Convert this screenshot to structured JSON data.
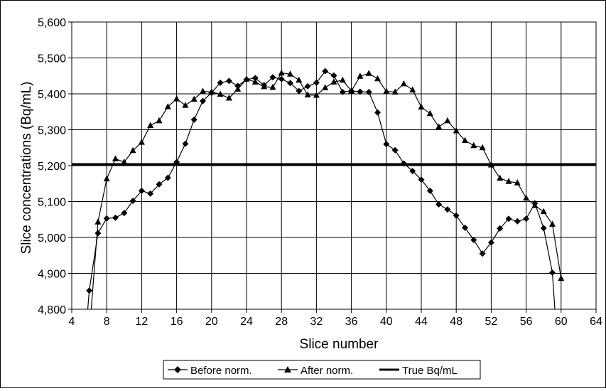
{
  "chart_data": {
    "type": "line",
    "xlabel": "Slice number",
    "ylabel": "Slice concentrations (Bq/mL)",
    "xlim": [
      4,
      64
    ],
    "ylim": [
      4800,
      5600
    ],
    "x_ticks": [
      "4",
      "8",
      "12",
      "16",
      "20",
      "24",
      "28",
      "32",
      "36",
      "40",
      "44",
      "48",
      "52",
      "56",
      "60",
      "64"
    ],
    "x_tick_values": [
      4,
      8,
      12,
      16,
      20,
      24,
      28,
      32,
      36,
      40,
      44,
      48,
      52,
      56,
      60,
      64
    ],
    "y_ticks": [
      "4,800",
      "4,900",
      "5,000",
      "5,100",
      "5,200",
      "5,300",
      "5,400",
      "5,500",
      "5,600"
    ],
    "y_tick_values": [
      4800,
      4900,
      5000,
      5100,
      5200,
      5300,
      5400,
      5500,
      5600
    ],
    "grid": true,
    "legend_position": "bottom",
    "series": [
      {
        "name": "Before norm.",
        "marker": "diamond",
        "color": "#000000",
        "points": [
          [
            5.7,
            4760
          ],
          [
            6,
            4852
          ],
          [
            7,
            5012
          ],
          [
            8,
            5053
          ],
          [
            9,
            5055
          ],
          [
            10,
            5068
          ],
          [
            11,
            5102
          ],
          [
            12,
            5130
          ],
          [
            13,
            5122
          ],
          [
            14,
            5148
          ],
          [
            15,
            5166
          ],
          [
            16,
            5210
          ],
          [
            17,
            5261
          ],
          [
            18,
            5328
          ],
          [
            19,
            5380
          ],
          [
            20,
            5403
          ],
          [
            21,
            5431
          ],
          [
            22,
            5436
          ],
          [
            23,
            5422
          ],
          [
            24,
            5440
          ],
          [
            25,
            5444
          ],
          [
            26,
            5424
          ],
          [
            27,
            5446
          ],
          [
            28,
            5441
          ],
          [
            29,
            5430
          ],
          [
            30,
            5408
          ],
          [
            31,
            5421
          ],
          [
            32,
            5431
          ],
          [
            33,
            5463
          ],
          [
            34,
            5451
          ],
          [
            35,
            5405
          ],
          [
            36,
            5408
          ],
          [
            37,
            5406
          ],
          [
            38,
            5405
          ],
          [
            39,
            5348
          ],
          [
            40,
            5260
          ],
          [
            41,
            5243
          ],
          [
            42,
            5206
          ],
          [
            43,
            5185
          ],
          [
            44,
            5161
          ],
          [
            45,
            5130
          ],
          [
            46,
            5092
          ],
          [
            47,
            5078
          ],
          [
            48,
            5061
          ],
          [
            49,
            5027
          ],
          [
            50,
            4993
          ],
          [
            51,
            4955
          ],
          [
            52,
            4986
          ],
          [
            53,
            5025
          ],
          [
            54,
            5052
          ],
          [
            55,
            5045
          ],
          [
            56,
            5052
          ],
          [
            57,
            5095
          ],
          [
            58,
            5026
          ],
          [
            59,
            4902
          ],
          [
            59.4,
            4760
          ]
        ]
      },
      {
        "name": "After norm.",
        "marker": "triangle",
        "color": "#000000",
        "points": [
          [
            6.1,
            4760
          ],
          [
            7,
            5043
          ],
          [
            8,
            5163
          ],
          [
            9,
            5219
          ],
          [
            10,
            5210
          ],
          [
            11,
            5242
          ],
          [
            12,
            5265
          ],
          [
            13,
            5312
          ],
          [
            14,
            5325
          ],
          [
            15,
            5364
          ],
          [
            16,
            5386
          ],
          [
            17,
            5368
          ],
          [
            18,
            5385
          ],
          [
            19,
            5407
          ],
          [
            20,
            5405
          ],
          [
            21,
            5399
          ],
          [
            22,
            5388
          ],
          [
            23,
            5413
          ],
          [
            24,
            5441
          ],
          [
            25,
            5433
          ],
          [
            26,
            5420
          ],
          [
            27,
            5418
          ],
          [
            28,
            5458
          ],
          [
            29,
            5455
          ],
          [
            30,
            5438
          ],
          [
            31,
            5397
          ],
          [
            32,
            5396
          ],
          [
            33,
            5417
          ],
          [
            34,
            5433
          ],
          [
            35,
            5438
          ],
          [
            36,
            5408
          ],
          [
            37,
            5449
          ],
          [
            38,
            5457
          ],
          [
            39,
            5442
          ],
          [
            40,
            5407
          ],
          [
            41,
            5405
          ],
          [
            42,
            5428
          ],
          [
            43,
            5411
          ],
          [
            44,
            5363
          ],
          [
            45,
            5345
          ],
          [
            46,
            5308
          ],
          [
            47,
            5325
          ],
          [
            48,
            5297
          ],
          [
            49,
            5270
          ],
          [
            50,
            5256
          ],
          [
            51,
            5250
          ],
          [
            52,
            5202
          ],
          [
            53,
            5165
          ],
          [
            54,
            5156
          ],
          [
            55,
            5152
          ],
          [
            56,
            5110
          ],
          [
            57,
            5089
          ],
          [
            58,
            5072
          ],
          [
            59,
            5037
          ],
          [
            60,
            4886
          ]
        ]
      },
      {
        "name": "True Bq/mL",
        "marker": "none",
        "color": "#000000",
        "points": [
          [
            4,
            5204
          ],
          [
            64,
            5204
          ]
        ]
      }
    ]
  }
}
